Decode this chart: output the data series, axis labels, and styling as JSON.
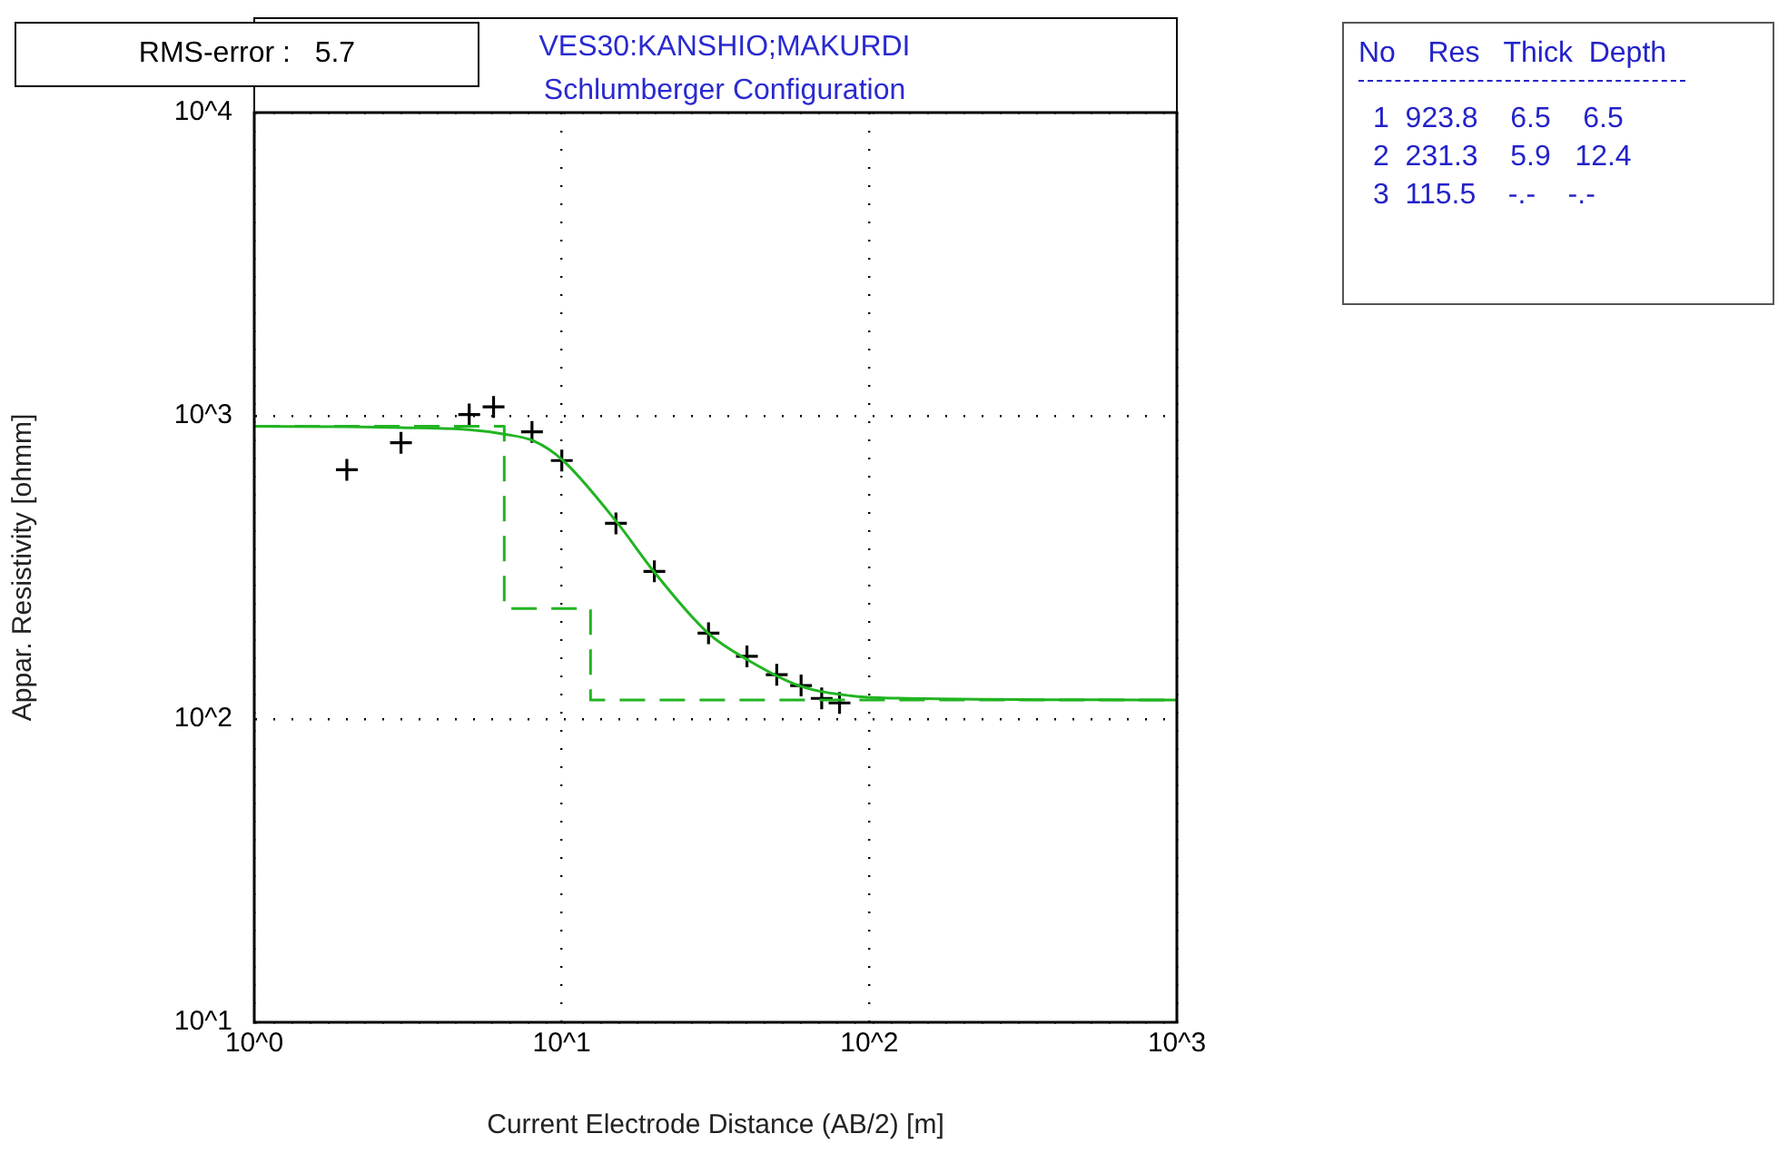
{
  "chart_data": {
    "type": "scatter",
    "title": "VES30:KANSHIO;MAKURDI",
    "subtitle": "Schlumberger Configuration",
    "xlabel": "Current Electrode Distance (AB/2) [m]",
    "ylabel": "Appar. Resistivity [ohmm]",
    "log": "xy",
    "grid": true,
    "xlim": [
      1,
      1000
    ],
    "ylim": [
      10,
      10000
    ],
    "xticks": [
      {
        "value": 1,
        "label": "10^0"
      },
      {
        "value": 10,
        "label": "10^1"
      },
      {
        "value": 100,
        "label": "10^2"
      },
      {
        "value": 1000,
        "label": "10^3"
      }
    ],
    "yticks": [
      {
        "value": 10,
        "label": "10^1"
      },
      {
        "value": 100,
        "label": "10^2"
      },
      {
        "value": 1000,
        "label": "10^3"
      },
      {
        "value": 10000,
        "label": "10^4"
      }
    ],
    "series": [
      {
        "type": "step",
        "color": "#22b422",
        "line_style": "dashed",
        "x": [
          1,
          6.5,
          12.4,
          1000
        ],
        "values": [
          923.8,
          231.3,
          115.5,
          115.5
        ]
      },
      {
        "type": "line",
        "color": "#22b422",
        "line_style": "solid",
        "marker": "none",
        "x": [
          1,
          2,
          3,
          4.98,
          6.5,
          8.1,
          10.1,
          15.2,
          19.9,
          29.9,
          41,
          59,
          89,
          134,
          1000
        ],
        "values": [
          924,
          920,
          915,
          900,
          870,
          826,
          712,
          442,
          307,
          192,
          155,
          129,
          119,
          117,
          115.5
        ]
      },
      {
        "color": "#000000",
        "marker": "cross",
        "x": [
          2,
          3,
          5,
          6,
          8,
          10,
          15,
          20,
          30,
          40,
          50,
          60,
          70,
          80
        ],
        "values": [
          664,
          815,
          1010,
          1070,
          885,
          712,
          442,
          307,
          192,
          161,
          140,
          129,
          117,
          113
        ]
      }
    ],
    "annotations": [
      "RMS-error :   5.7",
      "No    Res   Thick  Depth",
      "1  923.8    6.5    6.5",
      "2  231.3    5.9   12.4",
      "3  115.5    -.-    -.-"
    ]
  }
}
